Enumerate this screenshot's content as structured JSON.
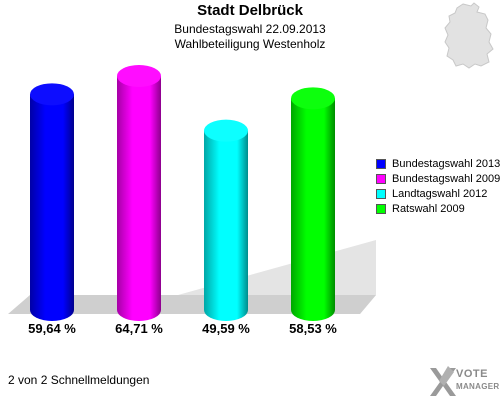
{
  "header": {
    "title": "Stadt Delbrück",
    "subtitle1": "Bundestagswahl 22.09.2013",
    "subtitle2": "Wahlbeteiligung Westenholz"
  },
  "footer": {
    "text": "2 von 2 Schnellmeldungen"
  },
  "logo": {
    "line1": "VOTE",
    "line2": "MANAGER"
  },
  "chart_data": {
    "type": "bar",
    "title": "Stadt Delbrück",
    "subtitle": "Bundestagswahl 22.09.2013 / Wahlbeteiligung Westenholz",
    "categories": [
      "Bundestagswahl 2013",
      "Bundestagswahl 2009",
      "Landtagswahl 2012",
      "Ratswahl 2009"
    ],
    "values": [
      59.64,
      64.71,
      49.59,
      58.53
    ],
    "value_labels": [
      "59,64 %",
      "64,71 %",
      "49,59 %",
      "58,53 %"
    ],
    "colors": [
      "#0000ff",
      "#ff00ff",
      "#00ffff",
      "#00ff00"
    ],
    "legend": {
      "position": "right",
      "entries": [
        "Bundestagswahl 2013",
        "Bundestagswahl 2009",
        "Landtagswahl 2012",
        "Ratswahl 2009"
      ]
    },
    "ylim": [
      0,
      100
    ],
    "grid": false,
    "style": "3d-cylinder"
  }
}
